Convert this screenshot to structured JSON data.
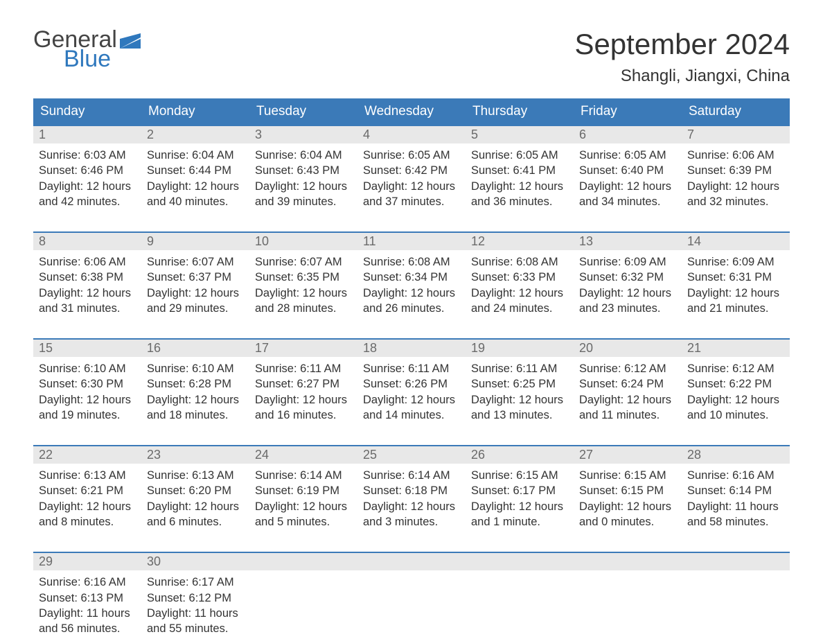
{
  "brand": {
    "part1": "General",
    "part2": "Blue",
    "flag_color": "#2f78bd"
  },
  "title": "September 2024",
  "location": "Shangli, Jiangxi, China",
  "colors": {
    "header_bg": "#3b7ab8",
    "header_text": "#ffffff",
    "row_border": "#3b7ab8",
    "daynum_bg": "#e8e8e8",
    "daynum_text": "#6a6a6a",
    "body_text": "#333333",
    "brand_gray": "#444444",
    "brand_blue": "#2f78bd",
    "background": "#ffffff"
  },
  "typography": {
    "title_fontsize": 42,
    "location_fontsize": 24,
    "dow_fontsize": 19,
    "daynum_fontsize": 18,
    "body_fontsize": 16.5,
    "logo_fontsize": 34
  },
  "days_of_week": [
    "Sunday",
    "Monday",
    "Tuesday",
    "Wednesday",
    "Thursday",
    "Friday",
    "Saturday"
  ],
  "weeks": [
    [
      {
        "n": "1",
        "sunrise": "Sunrise: 6:03 AM",
        "sunset": "Sunset: 6:46 PM",
        "d1": "Daylight: 12 hours",
        "d2": "and 42 minutes."
      },
      {
        "n": "2",
        "sunrise": "Sunrise: 6:04 AM",
        "sunset": "Sunset: 6:44 PM",
        "d1": "Daylight: 12 hours",
        "d2": "and 40 minutes."
      },
      {
        "n": "3",
        "sunrise": "Sunrise: 6:04 AM",
        "sunset": "Sunset: 6:43 PM",
        "d1": "Daylight: 12 hours",
        "d2": "and 39 minutes."
      },
      {
        "n": "4",
        "sunrise": "Sunrise: 6:05 AM",
        "sunset": "Sunset: 6:42 PM",
        "d1": "Daylight: 12 hours",
        "d2": "and 37 minutes."
      },
      {
        "n": "5",
        "sunrise": "Sunrise: 6:05 AM",
        "sunset": "Sunset: 6:41 PM",
        "d1": "Daylight: 12 hours",
        "d2": "and 36 minutes."
      },
      {
        "n": "6",
        "sunrise": "Sunrise: 6:05 AM",
        "sunset": "Sunset: 6:40 PM",
        "d1": "Daylight: 12 hours",
        "d2": "and 34 minutes."
      },
      {
        "n": "7",
        "sunrise": "Sunrise: 6:06 AM",
        "sunset": "Sunset: 6:39 PM",
        "d1": "Daylight: 12 hours",
        "d2": "and 32 minutes."
      }
    ],
    [
      {
        "n": "8",
        "sunrise": "Sunrise: 6:06 AM",
        "sunset": "Sunset: 6:38 PM",
        "d1": "Daylight: 12 hours",
        "d2": "and 31 minutes."
      },
      {
        "n": "9",
        "sunrise": "Sunrise: 6:07 AM",
        "sunset": "Sunset: 6:37 PM",
        "d1": "Daylight: 12 hours",
        "d2": "and 29 minutes."
      },
      {
        "n": "10",
        "sunrise": "Sunrise: 6:07 AM",
        "sunset": "Sunset: 6:35 PM",
        "d1": "Daylight: 12 hours",
        "d2": "and 28 minutes."
      },
      {
        "n": "11",
        "sunrise": "Sunrise: 6:08 AM",
        "sunset": "Sunset: 6:34 PM",
        "d1": "Daylight: 12 hours",
        "d2": "and 26 minutes."
      },
      {
        "n": "12",
        "sunrise": "Sunrise: 6:08 AM",
        "sunset": "Sunset: 6:33 PM",
        "d1": "Daylight: 12 hours",
        "d2": "and 24 minutes."
      },
      {
        "n": "13",
        "sunrise": "Sunrise: 6:09 AM",
        "sunset": "Sunset: 6:32 PM",
        "d1": "Daylight: 12 hours",
        "d2": "and 23 minutes."
      },
      {
        "n": "14",
        "sunrise": "Sunrise: 6:09 AM",
        "sunset": "Sunset: 6:31 PM",
        "d1": "Daylight: 12 hours",
        "d2": "and 21 minutes."
      }
    ],
    [
      {
        "n": "15",
        "sunrise": "Sunrise: 6:10 AM",
        "sunset": "Sunset: 6:30 PM",
        "d1": "Daylight: 12 hours",
        "d2": "and 19 minutes."
      },
      {
        "n": "16",
        "sunrise": "Sunrise: 6:10 AM",
        "sunset": "Sunset: 6:28 PM",
        "d1": "Daylight: 12 hours",
        "d2": "and 18 minutes."
      },
      {
        "n": "17",
        "sunrise": "Sunrise: 6:11 AM",
        "sunset": "Sunset: 6:27 PM",
        "d1": "Daylight: 12 hours",
        "d2": "and 16 minutes."
      },
      {
        "n": "18",
        "sunrise": "Sunrise: 6:11 AM",
        "sunset": "Sunset: 6:26 PM",
        "d1": "Daylight: 12 hours",
        "d2": "and 14 minutes."
      },
      {
        "n": "19",
        "sunrise": "Sunrise: 6:11 AM",
        "sunset": "Sunset: 6:25 PM",
        "d1": "Daylight: 12 hours",
        "d2": "and 13 minutes."
      },
      {
        "n": "20",
        "sunrise": "Sunrise: 6:12 AM",
        "sunset": "Sunset: 6:24 PM",
        "d1": "Daylight: 12 hours",
        "d2": "and 11 minutes."
      },
      {
        "n": "21",
        "sunrise": "Sunrise: 6:12 AM",
        "sunset": "Sunset: 6:22 PM",
        "d1": "Daylight: 12 hours",
        "d2": "and 10 minutes."
      }
    ],
    [
      {
        "n": "22",
        "sunrise": "Sunrise: 6:13 AM",
        "sunset": "Sunset: 6:21 PM",
        "d1": "Daylight: 12 hours",
        "d2": "and 8 minutes."
      },
      {
        "n": "23",
        "sunrise": "Sunrise: 6:13 AM",
        "sunset": "Sunset: 6:20 PM",
        "d1": "Daylight: 12 hours",
        "d2": "and 6 minutes."
      },
      {
        "n": "24",
        "sunrise": "Sunrise: 6:14 AM",
        "sunset": "Sunset: 6:19 PM",
        "d1": "Daylight: 12 hours",
        "d2": "and 5 minutes."
      },
      {
        "n": "25",
        "sunrise": "Sunrise: 6:14 AM",
        "sunset": "Sunset: 6:18 PM",
        "d1": "Daylight: 12 hours",
        "d2": "and 3 minutes."
      },
      {
        "n": "26",
        "sunrise": "Sunrise: 6:15 AM",
        "sunset": "Sunset: 6:17 PM",
        "d1": "Daylight: 12 hours",
        "d2": "and 1 minute."
      },
      {
        "n": "27",
        "sunrise": "Sunrise: 6:15 AM",
        "sunset": "Sunset: 6:15 PM",
        "d1": "Daylight: 12 hours",
        "d2": "and 0 minutes."
      },
      {
        "n": "28",
        "sunrise": "Sunrise: 6:16 AM",
        "sunset": "Sunset: 6:14 PM",
        "d1": "Daylight: 11 hours",
        "d2": "and 58 minutes."
      }
    ],
    [
      {
        "n": "29",
        "sunrise": "Sunrise: 6:16 AM",
        "sunset": "Sunset: 6:13 PM",
        "d1": "Daylight: 11 hours",
        "d2": "and 56 minutes."
      },
      {
        "n": "30",
        "sunrise": "Sunrise: 6:17 AM",
        "sunset": "Sunset: 6:12 PM",
        "d1": "Daylight: 11 hours",
        "d2": "and 55 minutes."
      },
      {
        "empty": true
      },
      {
        "empty": true
      },
      {
        "empty": true
      },
      {
        "empty": true
      },
      {
        "empty": true
      }
    ]
  ]
}
